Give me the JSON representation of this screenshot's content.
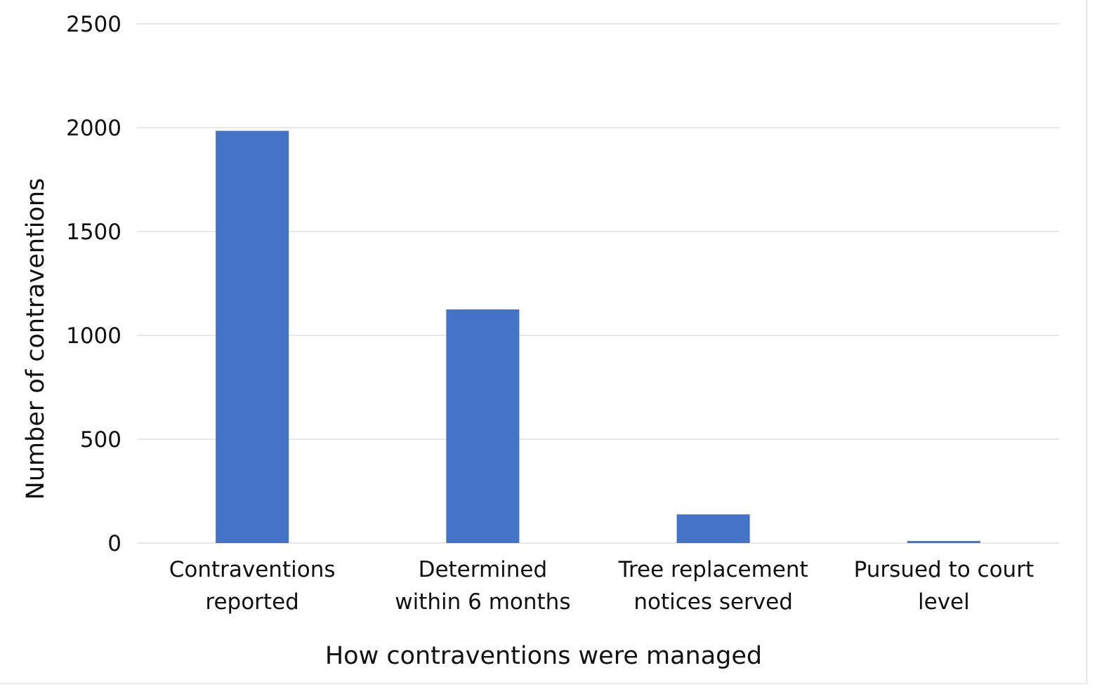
{
  "chart_data": {
    "type": "bar",
    "title": "",
    "xlabel": "How contraventions were managed",
    "ylabel": "Number of contraventions",
    "categories": [
      [
        "Contraventions",
        "reported"
      ],
      [
        "Determined",
        "within 6 months"
      ],
      [
        "Tree replacement",
        "notices served"
      ],
      [
        "Pursued to court",
        "level"
      ]
    ],
    "values": [
      1985,
      1125,
      138,
      10
    ],
    "ylim": [
      0,
      2500
    ],
    "yticks": [
      0,
      500,
      1000,
      1500,
      2000,
      2500
    ],
    "grid": true,
    "legend": "none",
    "bar_color": "#4472C4",
    "grid_color": "#d9d9d9"
  }
}
